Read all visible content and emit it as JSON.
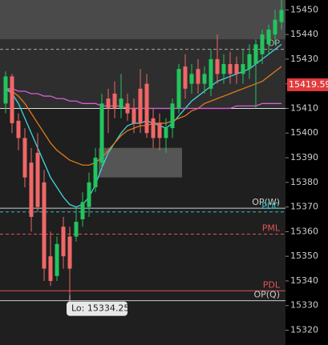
{
  "chart_data": {
    "type": "candlestick",
    "ylim": [
      15314,
      15454
    ],
    "yticks": [
      15320,
      15330,
      15340,
      15350,
      15360,
      15370,
      15380,
      15390,
      15400,
      15410,
      15420,
      15430,
      15440,
      15450
    ],
    "up_color": "#22c55e",
    "down_color": "#f06767",
    "open": [
      15412,
      15423,
      15405,
      15398,
      15388,
      15392,
      15380,
      15350,
      15342,
      15362,
      15358,
      15358,
      15365,
      15370,
      15378,
      15388,
      15414,
      15416,
      15410,
      15412,
      15410,
      15418,
      15420,
      15406,
      15404,
      15398,
      15402,
      15410,
      15427,
      15420,
      15426,
      15420,
      15418,
      15430,
      15424,
      15428,
      15428,
      15424,
      15426,
      15428,
      15432,
      15436,
      15440,
      15445
    ],
    "high": [
      15425,
      15424,
      15408,
      15402,
      15394,
      15400,
      15385,
      15360,
      15358,
      15366,
      15362,
      15370,
      15376,
      15384,
      15394,
      15416,
      15418,
      15421,
      15424,
      15416,
      15414,
      15426,
      15424,
      15410,
      15408,
      15406,
      15414,
      15428,
      15432,
      15428,
      15430,
      15427,
      15434,
      15440,
      15432,
      15433,
      15431,
      15434,
      15436,
      15438,
      15442,
      15444,
      15450,
      15454
    ],
    "low": [
      15408,
      15400,
      15393,
      15378,
      15360,
      15368,
      15340,
      15338,
      15340,
      15345,
      15334.25,
      15356,
      15362,
      15366,
      15376,
      15385,
      15400,
      15406,
      15406,
      15405,
      15400,
      15400,
      15398,
      15394,
      15393,
      15392,
      15398,
      15408,
      15414,
      15416,
      15416,
      15416,
      15415,
      15420,
      15420,
      15420,
      15420,
      15420,
      15422,
      15410,
      15428,
      15432,
      15436,
      15442
    ],
    "close": [
      15423,
      15404,
      15398,
      15382,
      15366,
      15370,
      15345,
      15340,
      15355,
      15350,
      15345,
      15364,
      15372,
      15380,
      15390,
      15412,
      15410,
      15410,
      15414,
      15408,
      15404,
      15404,
      15400,
      15398,
      15398,
      15402,
      15412,
      15426,
      15418,
      15424,
      15420,
      15424,
      15430,
      15424,
      15428,
      15424,
      15424,
      15428,
      15432,
      15436,
      15440,
      15442,
      15446,
      15450
    ],
    "lines": [
      {
        "color": "#3fd6e0",
        "values": [
          15418,
          15416,
          15412,
          15406,
          15400,
          15394,
          15388,
          15382,
          15378,
          15374,
          15371,
          15370,
          15371,
          15374,
          15379,
          15386,
          15392,
          15396,
          15400,
          15403,
          15404,
          15404,
          15405,
          15404,
          15403,
          15402,
          15404,
          15407,
          15410,
          15413,
          15415,
          15417,
          15419,
          15421,
          15422,
          15423,
          15424,
          15425,
          15426,
          15428,
          15430,
          15432,
          15434,
          15436
        ]
      },
      {
        "color": "#e07b1a",
        "values": [
          15418,
          15417,
          15415,
          15412,
          15408,
          15404,
          15400,
          15396,
          15393,
          15391,
          15389,
          15388,
          15387,
          15387,
          15388,
          15390,
          15393,
          15396,
          15399,
          15401,
          15402,
          15403,
          15403,
          15404,
          15404,
          15404,
          15405,
          15406,
          15407,
          15409,
          15410,
          15412,
          15413,
          15414,
          15415,
          15416,
          15417,
          15418,
          15419,
          15420,
          15421,
          15423,
          15425,
          15427
        ]
      },
      {
        "color": "#d65ed6",
        "values": [
          15418,
          15418,
          15417,
          15417,
          15416,
          15416,
          15415,
          15415,
          15414,
          15414,
          15413,
          15413,
          15412,
          15412,
          15412,
          15411,
          15411,
          15411,
          15411,
          15410,
          15410,
          15410,
          15410,
          15410,
          15410,
          15410,
          15410,
          15410,
          15410,
          15410,
          15410,
          15410,
          15410,
          15410,
          15410,
          15410,
          15411,
          15411,
          15411,
          15411,
          15412,
          15412,
          15412,
          15412
        ]
      }
    ],
    "zones": [
      {
        "low": 15438,
        "high": 15454,
        "color": "#4a4a4a"
      },
      {
        "low": 15410,
        "high": 15438,
        "color": "#2e2e2e"
      },
      {
        "low": 15382,
        "high": 15394,
        "color": "#555555",
        "from": 15,
        "to": 27
      }
    ],
    "levels": [
      {
        "label": "OP",
        "value": 15434,
        "color": "#aaaaaa",
        "dashed": true
      },
      {
        "label": null,
        "value": 15410,
        "color": "#dddddd",
        "dashed": false
      },
      {
        "label": "OP(W)",
        "value": 15369.5,
        "color": "#cccccc",
        "dashed": false
      },
      {
        "label": "PDC",
        "value": 15368,
        "color": "#2cc4d0",
        "dashed": true
      },
      {
        "label": "PML",
        "value": 15359,
        "color": "#e05555",
        "dashed": true
      },
      {
        "label": "PDL",
        "value": 15336,
        "color": "#e05555",
        "dashed": false
      },
      {
        "label": "OP(Q)",
        "value": 15332,
        "color": "#cccccc",
        "dashed": false
      }
    ],
    "current_price": 15419.59,
    "low_marker": {
      "label": "Lo: 15334.25",
      "value": 15334.25,
      "index": 10
    }
  }
}
